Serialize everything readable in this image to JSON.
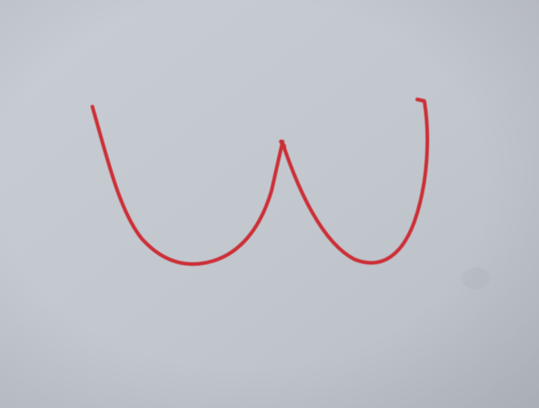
{
  "scene": {
    "background_color": "#c3c8cf",
    "stroke_color": "#cc2f35",
    "icon": "red-marker-stroke"
  }
}
